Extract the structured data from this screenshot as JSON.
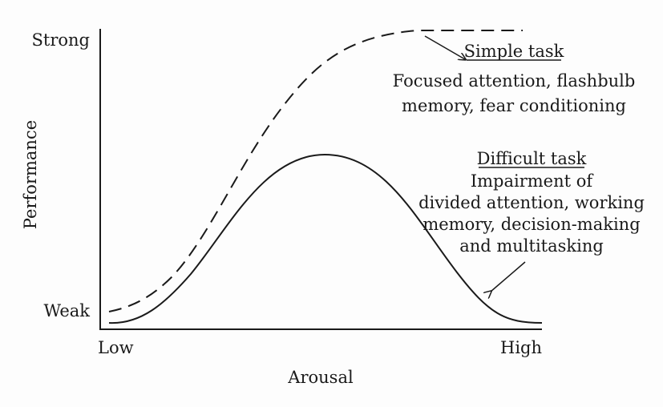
{
  "diagram": {
    "y_axis": {
      "label": "Performance",
      "top_tick": "Strong",
      "bottom_tick": "Weak"
    },
    "x_axis": {
      "label": "Arousal",
      "left_tick": "Low",
      "right_tick": "High"
    },
    "curves": [
      {
        "name": "Simple task",
        "style": "dashed",
        "description_lines": [
          "Focused attention, flashbulb",
          "memory, fear conditioning"
        ]
      },
      {
        "name": "Difficult task",
        "style": "solid",
        "description_lines": [
          "Impairment of",
          "divided attention, working",
          "memory, decision-making",
          "and multitasking"
        ]
      }
    ],
    "colors": {
      "line": "#1a1a1a",
      "background": "#fdfdfd"
    }
  }
}
